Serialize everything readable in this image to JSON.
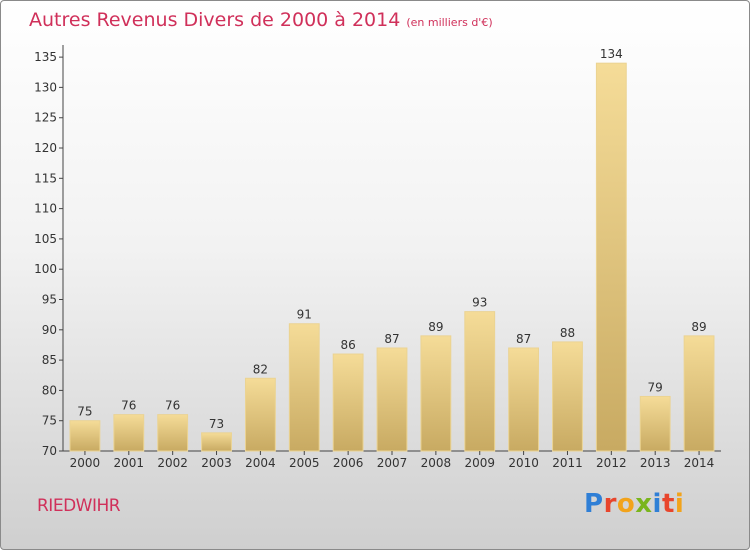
{
  "header": {
    "title": "Autres Revenus Divers de 2000 à 2014",
    "unit": "(en milliers d'€)"
  },
  "footer": {
    "commune": "RIEDWIHR",
    "logo_text": "Proxiti",
    "logo_colors": [
      "#2f7fd6",
      "#e8452c",
      "#f2a31b",
      "#7ab51d",
      "#2f7fd6",
      "#e8452c",
      "#f2a31b"
    ]
  },
  "chart_data": {
    "type": "bar",
    "title": "Autres Revenus Divers de 2000 à 2014",
    "xlabel": "",
    "ylabel": "",
    "categories": [
      "2000",
      "2001",
      "2002",
      "2003",
      "2004",
      "2005",
      "2006",
      "2007",
      "2008",
      "2009",
      "2010",
      "2011",
      "2012",
      "2013",
      "2014"
    ],
    "values": [
      75,
      76,
      76,
      73,
      82,
      91,
      86,
      87,
      89,
      93,
      87,
      88,
      134,
      79,
      89
    ],
    "ylim": [
      70,
      137
    ],
    "yticks": [
      70,
      75,
      80,
      85,
      90,
      95,
      100,
      105,
      110,
      115,
      120,
      125,
      130,
      135
    ],
    "grid": false,
    "legend": "none",
    "colors": {
      "bar_light": "#f5dc98",
      "bar_dark": "#c8aa62",
      "bar_edge": "#ebd392",
      "axis": "#444444",
      "text": "#d0305a"
    }
  }
}
